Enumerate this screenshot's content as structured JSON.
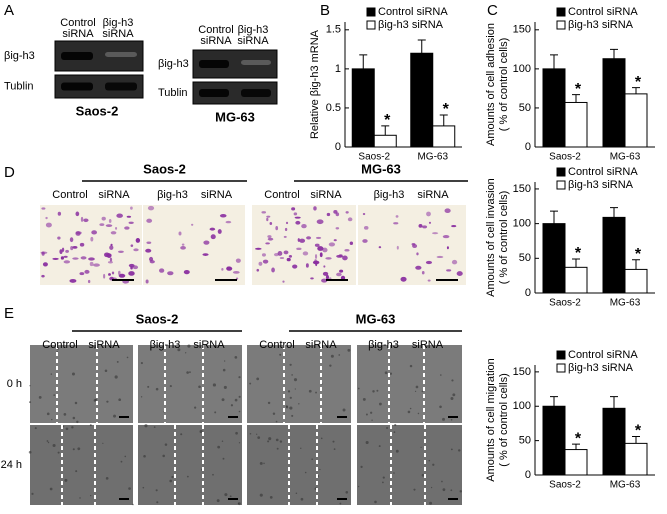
{
  "panel_labels": [
    "A",
    "B",
    "C",
    "D",
    "E"
  ],
  "blots": [
    {
      "cell_line": "Saos-2",
      "columns": [
        [
          "Control",
          "siRNA"
        ],
        [
          "βig-h3",
          "siRNA"
        ]
      ],
      "rows": [
        "βig-h3",
        "Tublin"
      ]
    },
    {
      "cell_line": "MG-63",
      "columns": [
        [
          "Control",
          "siRNA"
        ],
        [
          "βig-h3",
          "siRNA"
        ]
      ],
      "rows": [
        "βig-h3",
        "Tublin"
      ]
    }
  ],
  "invasion_images": {
    "groups": [
      {
        "cell_line": "Saos-2",
        "conditions": [
          [
            "Control",
            "siRNA"
          ],
          [
            "βig-h3",
            "siRNA"
          ]
        ]
      },
      {
        "cell_line": "MG-63",
        "conditions": [
          [
            "Control",
            "siRNA"
          ],
          [
            "βig-h3",
            "siRNA"
          ]
        ]
      }
    ]
  },
  "migration_images": {
    "groups": [
      {
        "cell_line": "Saos-2",
        "conditions": [
          [
            "Control",
            "siRNA"
          ],
          [
            "βig-h3",
            "siRNA"
          ]
        ]
      },
      {
        "cell_line": "MG-63",
        "conditions": [
          [
            "Control",
            "siRNA"
          ],
          [
            "βig-h3",
            "siRNA"
          ]
        ]
      }
    ],
    "times": [
      "0 h",
      "24 h"
    ]
  },
  "chart_data": [
    {
      "type": "bar",
      "ylabel": [
        "Relative βig-h3 mRNA"
      ],
      "categories": [
        "Saos-2",
        "MG-63"
      ],
      "ylim": [
        0,
        1.6
      ],
      "yticks": [
        0,
        0.5,
        1,
        1.5
      ],
      "legend": "top",
      "series": [
        {
          "name": "Control siRNA",
          "color": "#000000",
          "values": [
            1,
            1.2
          ],
          "errors": [
            0.18,
            0.17
          ]
        },
        {
          "name": "βig-h3 siRNA",
          "color": "#ffffff",
          "values": [
            0.15,
            0.27
          ],
          "errors": [
            0.12,
            0.14
          ],
          "significance": [
            "*",
            "*"
          ]
        }
      ]
    },
    {
      "type": "bar",
      "ylabel": [
        "Amounts of cell adhesion",
        "( % of control cells)"
      ],
      "categories": [
        "Saos-2",
        "MG-63"
      ],
      "ylim": [
        0,
        160
      ],
      "yticks": [
        0,
        50,
        100,
        150
      ],
      "legend": "top",
      "series": [
        {
          "name": "Control siRNA",
          "color": "#000000",
          "values": [
            100,
            113
          ],
          "errors": [
            18,
            12
          ]
        },
        {
          "name": "βig-h3 siRNA",
          "color": "#ffffff",
          "values": [
            57,
            68
          ],
          "errors": [
            10,
            8
          ],
          "significance": [
            "*",
            "*"
          ]
        }
      ]
    },
    {
      "type": "bar",
      "ylabel": [
        "Amounts of cell invasion",
        "( % of control cells)"
      ],
      "categories": [
        "Saos-2",
        "MG-63"
      ],
      "ylim": [
        0,
        160
      ],
      "yticks": [
        0,
        50,
        100,
        150
      ],
      "legend": "top",
      "series": [
        {
          "name": "Control siRNA",
          "color": "#000000",
          "values": [
            100,
            109
          ],
          "errors": [
            18,
            14
          ]
        },
        {
          "name": "βig-h3 siRNA",
          "color": "#ffffff",
          "values": [
            37,
            34
          ],
          "errors": [
            12,
            14
          ],
          "significance": [
            "*",
            "*"
          ]
        }
      ]
    },
    {
      "type": "bar",
      "ylabel": [
        "Amounts of cell migration",
        "( % of control cells)"
      ],
      "categories": [
        "Saos-2",
        "MG-63"
      ],
      "ylim": [
        0,
        160
      ],
      "yticks": [
        0,
        50,
        100,
        150
      ],
      "legend": "top",
      "series": [
        {
          "name": "Control siRNA",
          "color": "#000000",
          "values": [
            100,
            97
          ],
          "errors": [
            14,
            17
          ]
        },
        {
          "name": "βig-h3 siRNA",
          "color": "#ffffff",
          "values": [
            37,
            46
          ],
          "errors": [
            8,
            10
          ],
          "significance": [
            "*",
            "*"
          ]
        }
      ]
    }
  ]
}
